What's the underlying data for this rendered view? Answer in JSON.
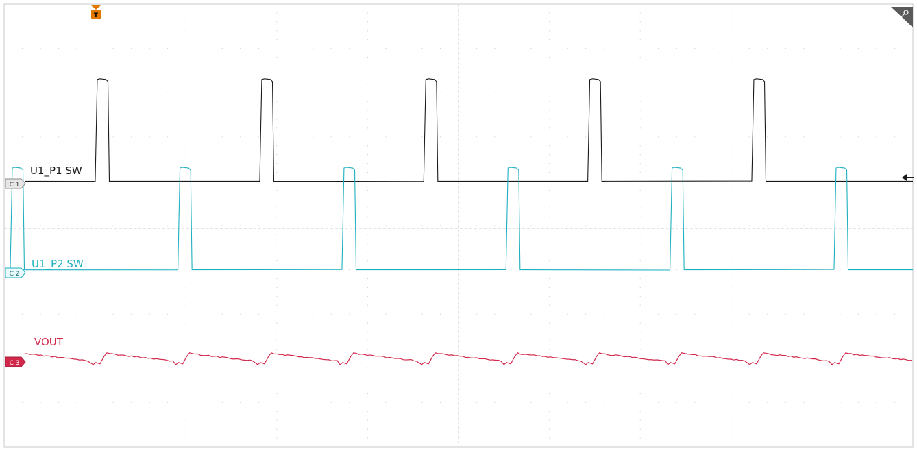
{
  "scope": {
    "trigger_marker": "T",
    "channels": [
      {
        "id": "C1",
        "marker": "C 1",
        "name": "U1_P1 SW",
        "color": "#1a1a1a"
      },
      {
        "id": "C2",
        "marker": "C 2",
        "name": "U1_P2 SW",
        "color": "#1fb0c0"
      },
      {
        "id": "C3",
        "marker": "C 3",
        "name": "VOUT",
        "color": "#d2284b"
      }
    ]
  },
  "chart_data": {
    "type": "line",
    "title": "",
    "xlabel": "",
    "ylabel": "",
    "grid": true,
    "x_divisions": 10,
    "y_divisions": 10,
    "series": [
      {
        "name": "U1_P1 SW",
        "kind": "pulse",
        "baseline_div": 6.0,
        "high_div": 8.3,
        "rise_div": [
          2.05,
          5.67,
          9.28,
          12.89,
          16.5
        ],
        "width_div": 0.25
      },
      {
        "name": "U1_P2 SW",
        "kind": "pulse",
        "baseline_div": 4.0,
        "high_div": 6.3,
        "rise_div": [
          0.18,
          3.87,
          7.48,
          11.09,
          14.7,
          18.31
        ],
        "width_div": 0.25
      },
      {
        "name": "VOUT",
        "kind": "ripple",
        "baseline_div": 2.0
      }
    ]
  }
}
